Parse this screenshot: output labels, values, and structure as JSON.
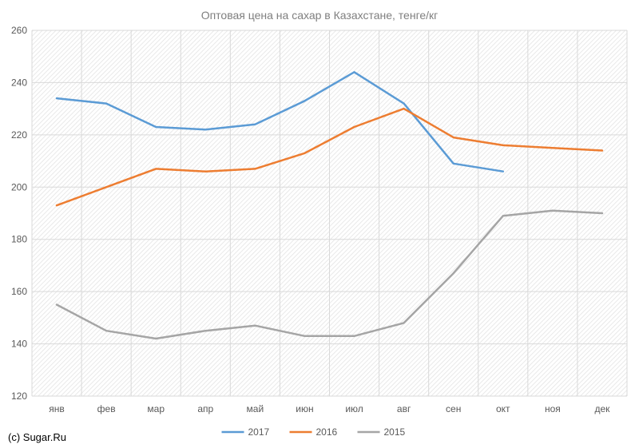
{
  "chart_data": {
    "type": "line",
    "title": "Оптовая цена на сахар в Казахстане, тенге/кг",
    "xlabel": "",
    "ylabel": "",
    "categories": [
      "янв",
      "фев",
      "мар",
      "апр",
      "май",
      "июн",
      "июл",
      "авг",
      "сен",
      "окт",
      "ноя",
      "дек"
    ],
    "ylim": [
      120,
      260
    ],
    "yticks": [
      120,
      140,
      160,
      180,
      200,
      220,
      240,
      260
    ],
    "grid": true,
    "legend_position": "bottom",
    "series": [
      {
        "name": "2017",
        "color": "#5b9bd5",
        "values": [
          234,
          232,
          223,
          222,
          224,
          233,
          244,
          232,
          209,
          206,
          null,
          null
        ]
      },
      {
        "name": "2016",
        "color": "#ed7d31",
        "values": [
          193,
          200,
          207,
          206,
          207,
          213,
          223,
          230,
          219,
          216,
          215,
          214
        ]
      },
      {
        "name": "2015",
        "color": "#a5a5a5",
        "values": [
          155,
          145,
          142,
          145,
          147,
          143,
          143,
          148,
          167,
          189,
          191,
          190
        ]
      }
    ],
    "credit": "(c) Sugar.Ru"
  }
}
